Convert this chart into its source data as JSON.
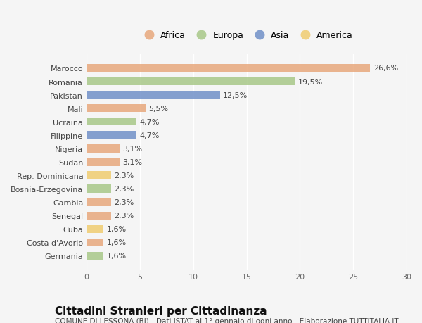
{
  "countries": [
    "Marocco",
    "Romania",
    "Pakistan",
    "Mali",
    "Ucraina",
    "Filippine",
    "Nigeria",
    "Sudan",
    "Rep. Dominicana",
    "Bosnia-Erzegovina",
    "Gambia",
    "Senegal",
    "Cuba",
    "Costa d'Avorio",
    "Germania"
  ],
  "values": [
    26.6,
    19.5,
    12.5,
    5.5,
    4.7,
    4.7,
    3.1,
    3.1,
    2.3,
    2.3,
    2.3,
    2.3,
    1.6,
    1.6,
    1.6
  ],
  "labels": [
    "26,6%",
    "19,5%",
    "12,5%",
    "5,5%",
    "4,7%",
    "4,7%",
    "3,1%",
    "3,1%",
    "2,3%",
    "2,3%",
    "2,3%",
    "2,3%",
    "1,6%",
    "1,6%",
    "1,6%"
  ],
  "continents": [
    "Africa",
    "Europa",
    "Asia",
    "Africa",
    "Europa",
    "Asia",
    "Africa",
    "Africa",
    "America",
    "Europa",
    "Africa",
    "Africa",
    "America",
    "Africa",
    "Europa"
  ],
  "colors": {
    "Africa": "#E8A87C",
    "Europa": "#A8C888",
    "Asia": "#7090C8",
    "America": "#F0CC70"
  },
  "title": "Cittadini Stranieri per Cittadinanza",
  "subtitle": "COMUNE DI LESSONA (BI) - Dati ISTAT al 1° gennaio di ogni anno - Elaborazione TUTTITALIA.IT",
  "xlim": [
    0,
    30
  ],
  "xticks": [
    0,
    5,
    10,
    15,
    20,
    25,
    30
  ],
  "background_color": "#f5f5f5",
  "bar_height": 0.6,
  "title_fontsize": 11,
  "subtitle_fontsize": 7.5,
  "label_fontsize": 8,
  "tick_fontsize": 8,
  "legend_fontsize": 9
}
